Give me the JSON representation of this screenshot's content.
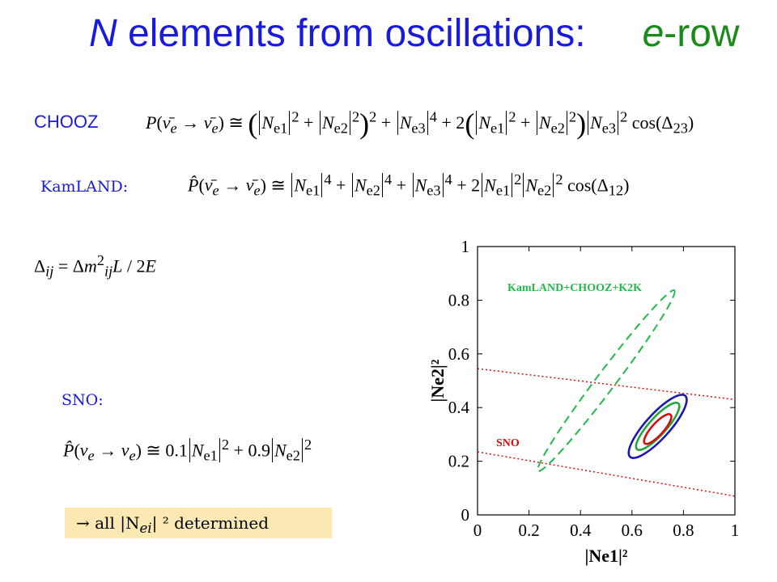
{
  "title": {
    "part1": "N",
    "part2": " elements from oscillations:",
    "part3": "e",
    "part4": "-row"
  },
  "labels": {
    "chooz": "CHOOZ",
    "kamland": "KamLAND:",
    "sno": "SNO:"
  },
  "equations": {
    "delta": "Δij = Δm²ij L/2E"
  },
  "conclusion": {
    "arrow": "→",
    "text": "all |N",
    "sub": "ei",
    "tail": "| ² determined"
  },
  "chart_data": {
    "type": "line",
    "xlabel": "|Ne1|²",
    "ylabel": "|Ne2|²",
    "xlim": [
      0,
      1
    ],
    "ylim": [
      0,
      1
    ],
    "xticks": [
      "0",
      "0.2",
      "0.4",
      "0.6",
      "0.8",
      "1"
    ],
    "yticks": [
      "0",
      "0.2",
      "0.4",
      "0.6",
      "0.8",
      "1"
    ],
    "annotations": [
      {
        "text": "KamLAND+CHOOZ+K2K",
        "color": "#22b84a"
      },
      {
        "text": "SNO",
        "color": "#d01010"
      }
    ],
    "series": [
      {
        "name": "KamLAND+CHOOZ+K2K",
        "style": "dashed",
        "color": "#22b84a",
        "ellipse": {
          "cx": 0.5,
          "cy": 0.5,
          "rx": 0.44,
          "ry": 0.035,
          "angle_deg": -53
        }
      },
      {
        "name": "outer",
        "style": "solid",
        "color": "#1a1ab0",
        "ellipse": {
          "cx": 0.7,
          "cy": 0.33,
          "rx": 0.16,
          "ry": 0.045,
          "angle_deg": -48
        }
      },
      {
        "name": "middle",
        "style": "solid",
        "color": "#22a83a",
        "ellipse": {
          "cx": 0.7,
          "cy": 0.33,
          "rx": 0.12,
          "ry": 0.032,
          "angle_deg": -48
        }
      },
      {
        "name": "inner",
        "style": "solid",
        "color": "#d01010",
        "ellipse": {
          "cx": 0.7,
          "cy": 0.32,
          "rx": 0.075,
          "ry": 0.022,
          "angle_deg": -48
        }
      },
      {
        "name": "SNO upper",
        "style": "dotted",
        "color": "#d01010",
        "x": [
          0,
          1
        ],
        "y": [
          0.545,
          0.43
        ]
      },
      {
        "name": "SNO lower",
        "style": "dotted",
        "color": "#d01010",
        "x": [
          0,
          1
        ],
        "y": [
          0.235,
          0.07
        ]
      }
    ]
  }
}
